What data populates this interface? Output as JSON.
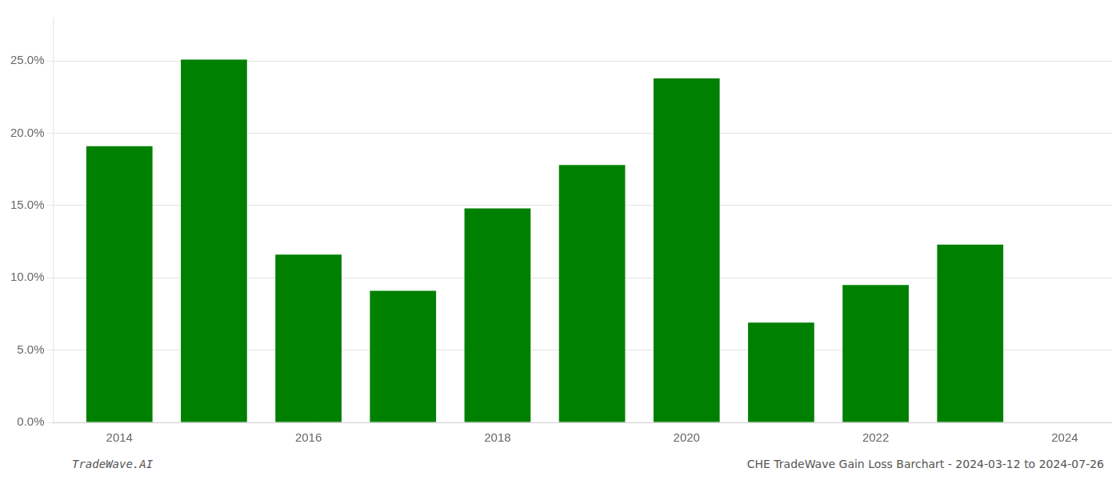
{
  "chart_data": {
    "type": "bar",
    "x": [
      2014,
      2015,
      2016,
      2017,
      2018,
      2019,
      2020,
      2021,
      2022,
      2023
    ],
    "values": [
      0.191,
      0.251,
      0.116,
      0.091,
      0.148,
      0.178,
      0.238,
      0.069,
      0.095,
      0.123
    ],
    "color": "#008000",
    "xlim": [
      2013.3,
      2024.5
    ],
    "xticks": [
      2014,
      2016,
      2018,
      2020,
      2022,
      2024
    ],
    "ylim": [
      0,
      0.28
    ],
    "yticks": [
      {
        "value": 0.0,
        "label": "0.0%"
      },
      {
        "value": 0.05,
        "label": "5.0%"
      },
      {
        "value": 0.1,
        "label": "10.0%"
      },
      {
        "value": 0.15,
        "label": "15.0%"
      },
      {
        "value": 0.2,
        "label": "20.0%"
      },
      {
        "value": 0.25,
        "label": "25.0%"
      }
    ],
    "grid": "y",
    "annotations": [
      "TradeWave.AI",
      "CHE TradeWave Gain Loss Barchart - 2024-03-12 to 2024-07-26"
    ]
  }
}
